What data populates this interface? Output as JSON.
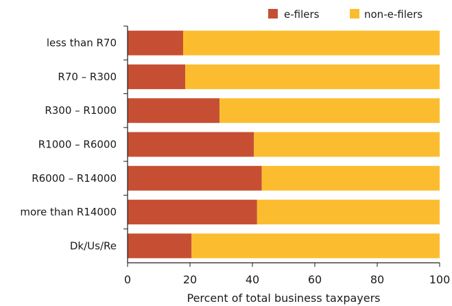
{
  "chart_data": {
    "type": "bar",
    "orientation": "horizontal",
    "stacked": true,
    "categories": [
      "less than R70",
      "R70 – R300",
      "R300 – R1000",
      "R1000 – R6000",
      "R6000 – R14000",
      "more than R14000",
      "Dk/Us/Re"
    ],
    "series": [
      {
        "name": "e-filers",
        "color": "#c64f33",
        "values": [
          17.8,
          18.5,
          29.5,
          40.5,
          43,
          41.5,
          20.5
        ]
      },
      {
        "name": "non-e-filers",
        "color": "#fbbd2f",
        "values": [
          82.2,
          81.5,
          70.5,
          59.5,
          57,
          58.5,
          79.5
        ]
      }
    ],
    "xlabel": "Percent of total business taxpayers",
    "ylabel": "",
    "xlim": [
      0,
      100
    ],
    "xticks": [
      0,
      20,
      40,
      60,
      80,
      100
    ],
    "grid": false,
    "legend_position": "top-right"
  }
}
